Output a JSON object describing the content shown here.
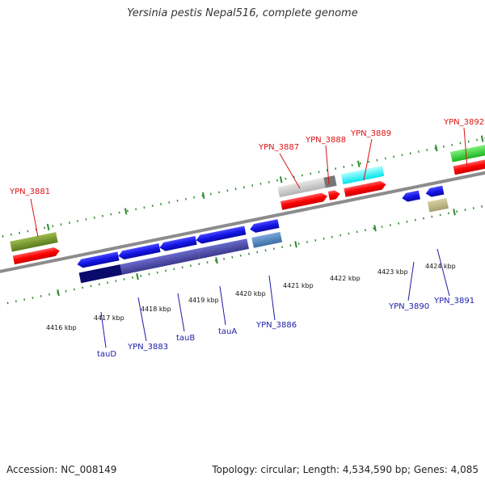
{
  "header": {
    "title": "Yersinia pestis Nepal516, complete genome"
  },
  "footer": {
    "accession": "Accession: NC_008149",
    "summary": "Topology: circular; Length: 4,534,590 bp; Genes: 4,085"
  },
  "colors": {
    "backbone": "#8c8c8c",
    "tick": "#2e8b2e",
    "label_top": "#dd1111",
    "label_bottom": "#1c1ca8"
  },
  "scale": {
    "unit": "kbp",
    "ticks": [
      4416,
      4417,
      4418,
      4419,
      4420,
      4421,
      4422,
      4423,
      4424
    ]
  },
  "labels_top": [
    "YPN_3881",
    "YPN_3887",
    "YPN_3888",
    "YPN_3889",
    "YPN_3892"
  ],
  "labels_bottom": [
    "tauD",
    "YPN_3883",
    "tauB",
    "tauA",
    "YPN_3886",
    "YPN_3890",
    "YPN_3891"
  ]
}
